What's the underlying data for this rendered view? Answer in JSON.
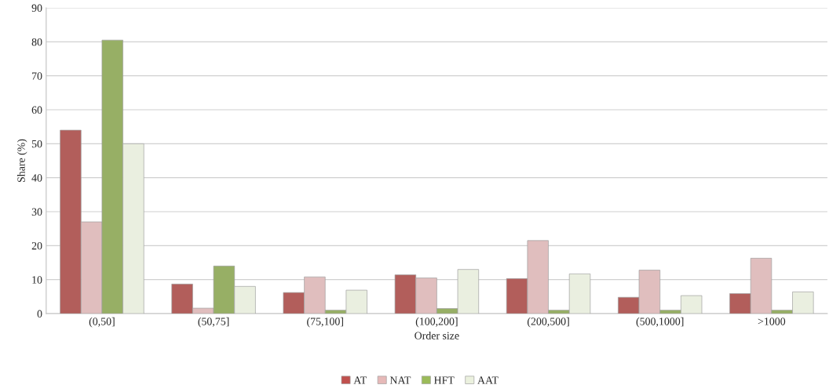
{
  "chart_data": {
    "type": "bar",
    "xlabel": "Order size",
    "ylabel": "Share (%)",
    "categories": [
      "(0,50]",
      "(50,75]",
      "(75,100]",
      "(100,200]",
      "(200,500]",
      "(500,1000]",
      ">1000"
    ],
    "series": [
      {
        "name": "AT",
        "color": "#c0504d",
        "values": [
          54,
          8.7,
          6.2,
          11.4,
          10.3,
          4.8,
          5.9
        ]
      },
      {
        "name": "NAT",
        "color": "#e6b9b8",
        "values": [
          27,
          1.6,
          10.8,
          10.5,
          21.5,
          12.8,
          16.3
        ]
      },
      {
        "name": "HFT",
        "color": "#9bbb59",
        "values": [
          80.5,
          14,
          1,
          1.5,
          1,
          1,
          1
        ]
      },
      {
        "name": "AAT",
        "color": "#ebf1de",
        "values": [
          50,
          8,
          6.9,
          13,
          11.7,
          5.3,
          6.4
        ]
      }
    ],
    "ylim": [
      0,
      90
    ],
    "yticks": [
      0,
      10,
      20,
      30,
      40,
      50,
      60,
      70,
      80,
      90
    ],
    "grid": "y",
    "legend": "bottom"
  }
}
